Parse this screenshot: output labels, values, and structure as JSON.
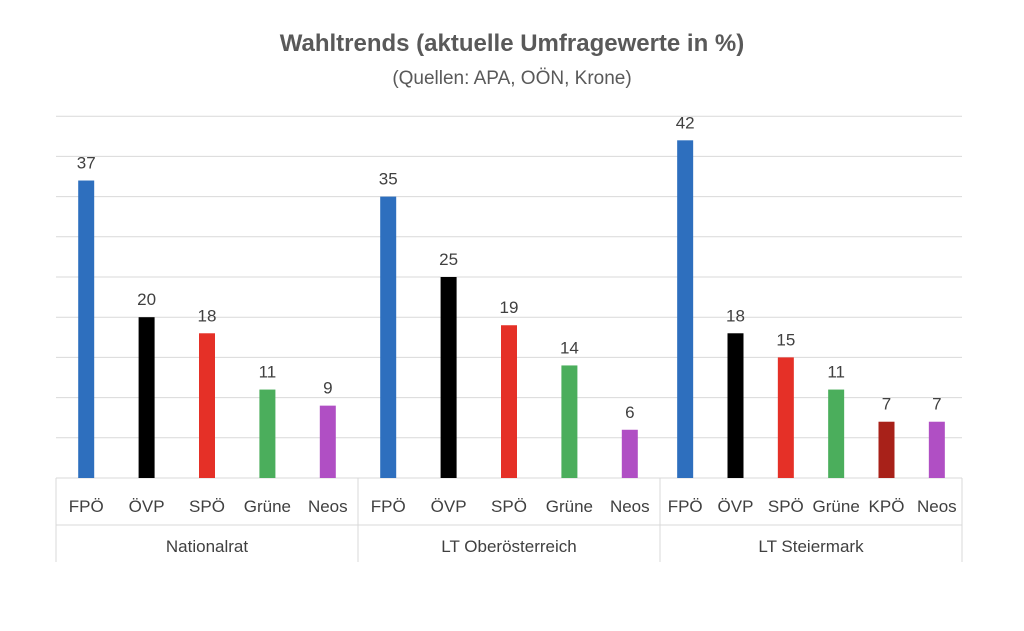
{
  "chart_data": {
    "type": "bar",
    "title": "Wahltrends (aktuelle Umfragewerte in %)",
    "subtitle": "(Quellen: APA, OÖN, Krone)",
    "ylim": [
      0,
      45
    ],
    "grid": true,
    "groups": [
      {
        "name": "Nationalrat",
        "bars": [
          {
            "label": "FPÖ",
            "value": 37,
            "color": "#2E6FBE"
          },
          {
            "label": "ÖVP",
            "value": 20,
            "color": "#000000"
          },
          {
            "label": "SPÖ",
            "value": 18,
            "color": "#E53027"
          },
          {
            "label": "Grüne",
            "value": 11,
            "color": "#4BAE5C"
          },
          {
            "label": "Neos",
            "value": 9,
            "color": "#B04FC4"
          }
        ]
      },
      {
        "name": "LT Oberösterreich",
        "bars": [
          {
            "label": "FPÖ",
            "value": 35,
            "color": "#2E6FBE"
          },
          {
            "label": "ÖVP",
            "value": 25,
            "color": "#000000"
          },
          {
            "label": "SPÖ",
            "value": 19,
            "color": "#E53027"
          },
          {
            "label": "Grüne",
            "value": 14,
            "color": "#4BAE5C"
          },
          {
            "label": "Neos",
            "value": 6,
            "color": "#B04FC4"
          }
        ]
      },
      {
        "name": "LT Steiermark",
        "bars": [
          {
            "label": "FPÖ",
            "value": 42,
            "color": "#2E6FBE"
          },
          {
            "label": "ÖVP",
            "value": 18,
            "color": "#000000"
          },
          {
            "label": "SPÖ",
            "value": 15,
            "color": "#E53027"
          },
          {
            "label": "Grüne",
            "value": 11,
            "color": "#4BAE5C"
          },
          {
            "label": "KPÖ",
            "value": 7,
            "color": "#A82119"
          },
          {
            "label": "Neos",
            "value": 7,
            "color": "#B04FC4"
          }
        ]
      }
    ]
  }
}
